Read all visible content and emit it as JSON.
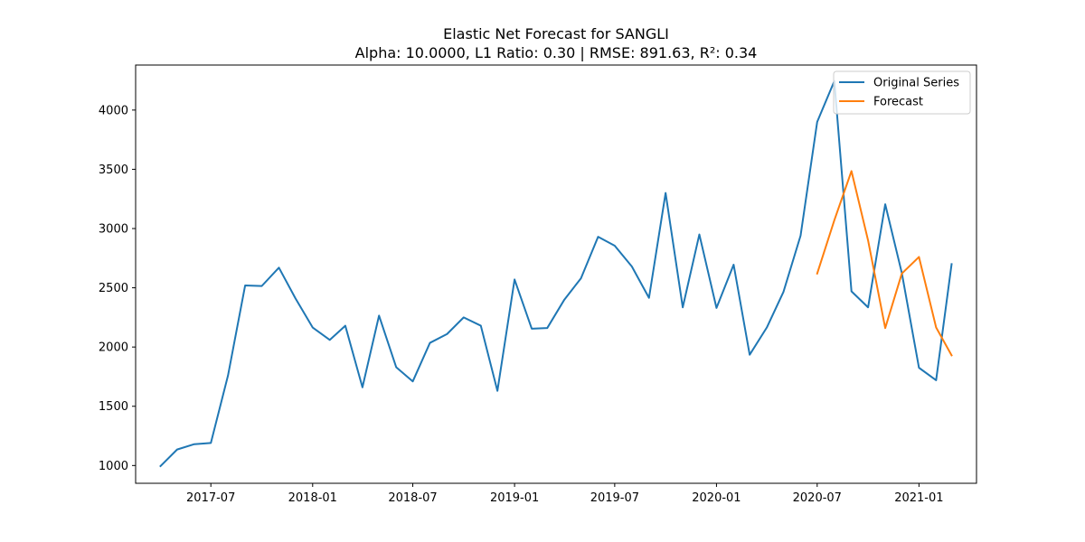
{
  "chart_data": {
    "type": "line",
    "title": "Elastic Net Forecast for SANGLI",
    "subtitle": "Alpha: 10.0000, L1 Ratio: 0.30 | RMSE: 891.63, R²: 0.34",
    "xlabel": "",
    "ylabel": "",
    "x_tick_labels": [
      "2017-07",
      "2018-01",
      "2018-07",
      "2019-01",
      "2019-07",
      "2020-01",
      "2020-07",
      "2021-01"
    ],
    "x_tick_dates": [
      "2017-07-01",
      "2018-01-01",
      "2018-07-01",
      "2019-01-01",
      "2019-07-01",
      "2020-01-01",
      "2020-07-01",
      "2021-01-01"
    ],
    "y_ticks": [
      1000,
      1500,
      2000,
      2500,
      3000,
      3500,
      4000
    ],
    "xlim": [
      "2017-02-15",
      "2021-04-15"
    ],
    "ylim": [
      850,
      4380
    ],
    "grid": false,
    "legend_position": "top-right",
    "series": [
      {
        "name": "Original Series",
        "color": "#1f77b4",
        "x": [
          "2017-04-01",
          "2017-05-01",
          "2017-06-01",
          "2017-07-01",
          "2017-08-01",
          "2017-09-01",
          "2017-10-01",
          "2017-11-01",
          "2017-12-01",
          "2018-01-01",
          "2018-02-01",
          "2018-03-01",
          "2018-04-01",
          "2018-05-01",
          "2018-06-01",
          "2018-07-01",
          "2018-08-01",
          "2018-09-01",
          "2018-10-01",
          "2018-11-01",
          "2018-12-01",
          "2019-01-01",
          "2019-02-01",
          "2019-03-01",
          "2019-04-01",
          "2019-05-01",
          "2019-06-01",
          "2019-07-01",
          "2019-08-01",
          "2019-09-01",
          "2019-10-01",
          "2019-11-01",
          "2019-12-01",
          "2020-01-01",
          "2020-02-01",
          "2020-03-01",
          "2020-04-01",
          "2020-05-01",
          "2020-06-01",
          "2020-07-01",
          "2020-08-01",
          "2020-09-01",
          "2020-10-01",
          "2020-11-01",
          "2020-12-01",
          "2021-01-01",
          "2021-02-01",
          "2021-03-01"
        ],
        "y": [
          995,
          1135,
          1180,
          1190,
          1760,
          2520,
          2515,
          2670,
          2410,
          2165,
          2060,
          2180,
          1660,
          2265,
          1830,
          1710,
          2035,
          2110,
          2250,
          2180,
          1630,
          2570,
          2155,
          2160,
          2400,
          2580,
          2930,
          2855,
          2680,
          2415,
          3300,
          2335,
          2950,
          2330,
          2695,
          1935,
          2165,
          2465,
          2940,
          3900,
          4245,
          2470,
          2335,
          3205,
          2625,
          1825,
          1720,
          2700
        ]
      },
      {
        "name": "Forecast",
        "color": "#ff7f0e",
        "x": [
          "2020-07-01",
          "2020-08-01",
          "2020-09-01",
          "2020-10-01",
          "2020-11-01",
          "2020-12-01",
          "2021-01-01",
          "2021-02-01",
          "2021-03-01"
        ],
        "y": [
          2620,
          3070,
          3485,
          2900,
          2160,
          2620,
          2760,
          2165,
          1930
        ]
      }
    ]
  }
}
